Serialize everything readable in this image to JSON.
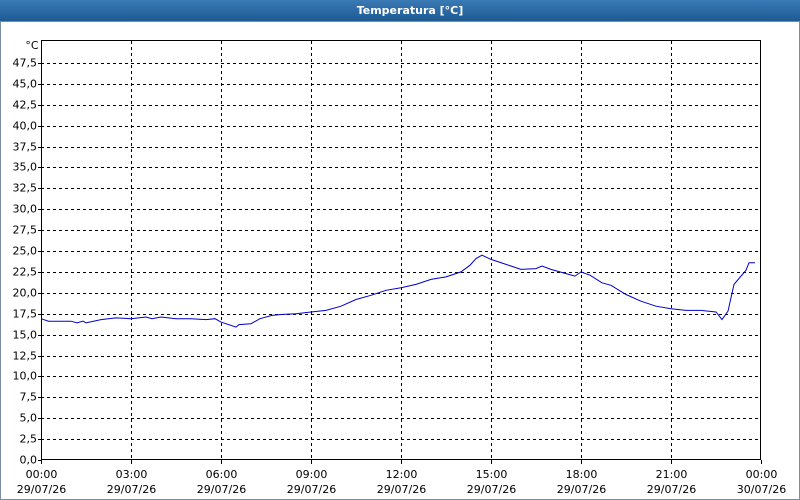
{
  "chart_data": {
    "type": "line",
    "title": "Temperatura [°C]",
    "y_label": "°C",
    "color": "#0000c8",
    "x": [
      0,
      0.25,
      1,
      1.2,
      1.4,
      1.5,
      2,
      2.5,
      3,
      3.5,
      3.7,
      4,
      4.5,
      5,
      5.5,
      5.8,
      6,
      6.5,
      6.6,
      7,
      7.3,
      7.7,
      8,
      8.5,
      9,
      9.5,
      10,
      10.5,
      11,
      11.5,
      12,
      12.5,
      13,
      13.5,
      14,
      14.3,
      14.5,
      14.7,
      15,
      15.5,
      16,
      16.5,
      16.7,
      17,
      17.5,
      17.8,
      18,
      18.3,
      18.7,
      19,
      19.5,
      20,
      20.5,
      21,
      21.5,
      22,
      22.5,
      22.7,
      22.9,
      23.1,
      23.5,
      23.6,
      23.8
    ],
    "values": [
      16.9,
      16.6,
      16.6,
      16.4,
      16.6,
      16.4,
      16.8,
      17.0,
      16.9,
      17.1,
      16.9,
      17.1,
      16.9,
      16.9,
      16.8,
      16.9,
      16.5,
      15.9,
      16.2,
      16.3,
      16.9,
      17.3,
      17.4,
      17.5,
      17.7,
      17.9,
      18.4,
      19.2,
      19.7,
      20.3,
      20.6,
      21.0,
      21.6,
      21.9,
      22.5,
      23.3,
      24.1,
      24.5,
      24.0,
      23.4,
      22.8,
      22.9,
      23.2,
      22.8,
      22.3,
      22.0,
      22.5,
      22.1,
      21.2,
      20.9,
      19.8,
      19.0,
      18.4,
      18.1,
      17.9,
      17.9,
      17.7,
      16.8,
      17.8,
      21.0,
      22.7,
      23.6,
      23.6
    ],
    "xlim": [
      0,
      24
    ],
    "xticks": [
      {
        "value": 0,
        "label": "00:00"
      },
      {
        "value": 3,
        "label": "03:00"
      },
      {
        "value": 6,
        "label": "06:00"
      },
      {
        "value": 9,
        "label": "09:00"
      },
      {
        "value": 12,
        "label": "12:00"
      },
      {
        "value": 15,
        "label": "15:00"
      },
      {
        "value": 18,
        "label": "18:00"
      },
      {
        "value": 21,
        "label": "21:00"
      },
      {
        "value": 24,
        "label": "00:00"
      }
    ],
    "xtick_dates": [
      "29/07/26",
      "29/07/26",
      "29/07/26",
      "29/07/26",
      "29/07/26",
      "29/07/26",
      "29/07/26",
      "29/07/26",
      "30/07/26"
    ],
    "ylim": [
      0,
      50
    ],
    "yticks": [
      {
        "value": 0,
        "label": "0,0"
      },
      {
        "value": 2.5,
        "label": "2,5"
      },
      {
        "value": 5,
        "label": "5,0"
      },
      {
        "value": 7.5,
        "label": "7,5"
      },
      {
        "value": 10,
        "label": "10,0"
      },
      {
        "value": 12.5,
        "label": "12,5"
      },
      {
        "value": 15,
        "label": "15,0"
      },
      {
        "value": 17.5,
        "label": "17,5"
      },
      {
        "value": 20,
        "label": "20,0"
      },
      {
        "value": 22.5,
        "label": "22,5"
      },
      {
        "value": 25,
        "label": "25,0"
      },
      {
        "value": 27.5,
        "label": "27,5"
      },
      {
        "value": 30,
        "label": "30,0"
      },
      {
        "value": 32.5,
        "label": "32,5"
      },
      {
        "value": 35,
        "label": "35,0"
      },
      {
        "value": 37.5,
        "label": "37,5"
      },
      {
        "value": 40,
        "label": "40,0"
      },
      {
        "value": 42.5,
        "label": "42,5"
      },
      {
        "value": 45,
        "label": "45,0"
      },
      {
        "value": 47.5,
        "label": "47,5"
      }
    ],
    "grid": true
  }
}
